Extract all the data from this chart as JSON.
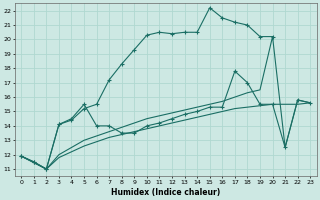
{
  "xlabel": "Humidex (Indice chaleur)",
  "bg_color": "#cde8e3",
  "grid_color": "#b0d8d0",
  "line_color": "#1a6e64",
  "xlim": [
    -0.5,
    23.5
  ],
  "ylim": [
    10.5,
    22.5
  ],
  "xticks": [
    0,
    1,
    2,
    3,
    4,
    5,
    6,
    7,
    8,
    9,
    10,
    11,
    12,
    13,
    14,
    15,
    16,
    17,
    18,
    19,
    20,
    21,
    22,
    23
  ],
  "yticks": [
    11,
    12,
    13,
    14,
    15,
    16,
    17,
    18,
    19,
    20,
    21,
    22
  ],
  "line1_x": [
    0,
    1,
    2,
    3,
    4,
    5,
    6,
    7,
    8,
    9,
    10,
    11,
    12,
    13,
    14,
    15,
    16,
    17,
    18,
    19,
    20
  ],
  "line1_y": [
    11.9,
    11.5,
    11.0,
    14.1,
    14.4,
    15.2,
    15.5,
    17.2,
    18.3,
    19.3,
    20.3,
    20.5,
    20.4,
    20.5,
    20.5,
    22.2,
    21.5,
    21.2,
    21.0,
    20.2,
    20.2
  ],
  "line2_x": [
    0,
    1,
    2,
    3,
    4,
    5,
    6,
    7,
    8,
    9,
    10,
    11,
    12,
    13,
    14,
    15,
    16,
    17,
    18,
    19,
    20,
    21,
    22,
    23
  ],
  "line2_y": [
    11.9,
    11.5,
    11.0,
    14.1,
    14.5,
    15.5,
    14.0,
    14.0,
    13.5,
    13.5,
    14.0,
    14.2,
    14.5,
    14.8,
    15.0,
    15.3,
    15.3,
    17.8,
    17.0,
    15.5,
    15.5,
    12.5,
    15.8,
    15.6
  ],
  "line3_x": [
    0,
    2,
    3,
    4,
    5,
    6,
    7,
    8,
    9,
    10,
    11,
    12,
    13,
    14,
    15,
    16,
    17,
    18,
    19,
    20,
    21,
    22,
    23
  ],
  "line3_y": [
    11.9,
    11.0,
    11.8,
    12.2,
    12.6,
    12.9,
    13.2,
    13.4,
    13.6,
    13.8,
    14.0,
    14.2,
    14.4,
    14.6,
    14.8,
    15.0,
    15.2,
    15.3,
    15.4,
    15.5,
    15.5,
    15.5,
    15.6
  ],
  "line4_x": [
    0,
    2,
    3,
    4,
    5,
    6,
    7,
    8,
    9,
    10,
    11,
    12,
    13,
    14,
    15,
    16,
    17,
    18,
    19,
    20,
    21,
    22,
    23
  ],
  "line4_y": [
    11.9,
    11.0,
    12.0,
    12.5,
    13.0,
    13.3,
    13.6,
    13.9,
    14.2,
    14.5,
    14.7,
    14.9,
    15.1,
    15.3,
    15.5,
    15.7,
    16.0,
    16.3,
    16.5,
    20.2,
    12.5,
    15.8,
    15.6
  ]
}
